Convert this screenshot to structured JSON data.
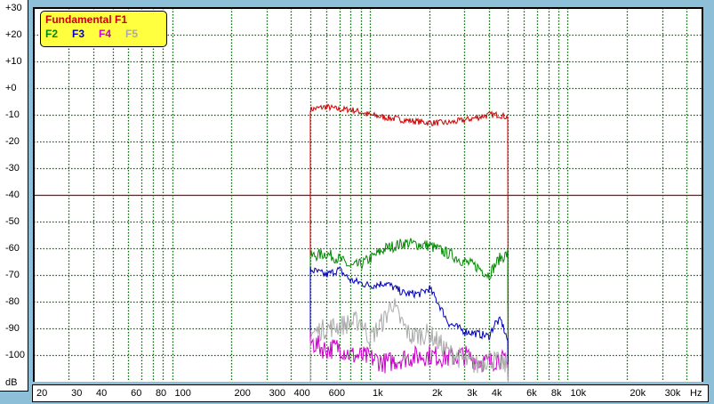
{
  "chart_data": {
    "type": "line",
    "title": "",
    "xlabel": "Hz",
    "ylabel": "dB",
    "x_scale": "log",
    "xlim": [
      20,
      48000
    ],
    "ylim": [
      -110,
      30
    ],
    "grid": true,
    "legend_placement": "top-left",
    "y_ticks": [
      "+30",
      "+20",
      "+10",
      "+0",
      "-10",
      "-20",
      "-30",
      "-40",
      "-50",
      "-60",
      "-70",
      "-80",
      "-90",
      "-100"
    ],
    "x_ticks": [
      {
        "label": "20",
        "f": 20
      },
      {
        "label": "30",
        "f": 30
      },
      {
        "label": "40",
        "f": 40
      },
      {
        "label": "60",
        "f": 60
      },
      {
        "label": "80",
        "f": 80
      },
      {
        "label": "100",
        "f": 100
      },
      {
        "label": "200",
        "f": 200
      },
      {
        "label": "300",
        "f": 300
      },
      {
        "label": "400",
        "f": 400
      },
      {
        "label": "600",
        "f": 600
      },
      {
        "label": "1k",
        "f": 1000
      },
      {
        "label": "2k",
        "f": 2000
      },
      {
        "label": "3k",
        "f": 3000
      },
      {
        "label": "4k",
        "f": 4000
      },
      {
        "label": "6k",
        "f": 6000
      },
      {
        "label": "8k",
        "f": 8000
      },
      {
        "label": "10k",
        "f": 10000
      },
      {
        "label": "20k",
        "f": 20000
      },
      {
        "label": "30k",
        "f": 30000
      }
    ],
    "reference_line_db": -40,
    "legend": {
      "title": "Fundamental F1",
      "items": [
        "F2",
        "F3",
        "F4",
        "F5"
      ]
    },
    "series": [
      {
        "name": "Fundamental F1",
        "color": "#cc0000",
        "x": [
          500,
          600,
          700,
          800,
          900,
          1000,
          1200,
          1500,
          2000,
          2500,
          3000,
          3500,
          4000,
          4500,
          5000
        ],
        "y": [
          -8,
          -7,
          -8,
          -8,
          -9,
          -10,
          -11,
          -12,
          -13,
          -13,
          -12,
          -11,
          -10,
          -10,
          -11
        ]
      },
      {
        "name": "F2",
        "color": "#008800",
        "x": [
          500,
          600,
          700,
          800,
          900,
          1000,
          1200,
          1500,
          2000,
          2500,
          3000,
          3500,
          4000,
          4500,
          5000
        ],
        "y": [
          -63,
          -62,
          -64,
          -67,
          -66,
          -64,
          -60,
          -58,
          -59,
          -62,
          -65,
          -67,
          -70,
          -64,
          -62
        ]
      },
      {
        "name": "F3",
        "color": "#0000bb",
        "x": [
          500,
          600,
          700,
          800,
          900,
          1000,
          1200,
          1500,
          1800,
          2000,
          2200,
          2500,
          3000,
          3500,
          4000,
          4300,
          4600,
          5000
        ],
        "y": [
          -68,
          -70,
          -68,
          -72,
          -73,
          -74,
          -73,
          -77,
          -77,
          -75,
          -80,
          -88,
          -91,
          -92,
          -93,
          -88,
          -87,
          -95
        ]
      },
      {
        "name": "F4",
        "color": "#cc00cc",
        "x": [
          500,
          600,
          700,
          800,
          1000,
          1200,
          1500,
          2000,
          2500,
          3000,
          3500,
          4000,
          4500,
          5000
        ],
        "y": [
          -95,
          -98,
          -97,
          -100,
          -101,
          -103,
          -101,
          -100,
          -101,
          -100,
          -102,
          -103,
          -101,
          -104
        ]
      },
      {
        "name": "F5",
        "color": "#aaaaaa",
        "x": [
          500,
          600,
          700,
          800,
          900,
          1000,
          1200,
          1300,
          1400,
          1600,
          2000,
          2500,
          3000,
          3500,
          4000,
          4500,
          5000
        ],
        "y": [
          -92,
          -90,
          -89,
          -88,
          -87,
          -94,
          -86,
          -80,
          -86,
          -93,
          -92,
          -99,
          -102,
          -104,
          -101,
          -103,
          -104
        ]
      }
    ]
  }
}
